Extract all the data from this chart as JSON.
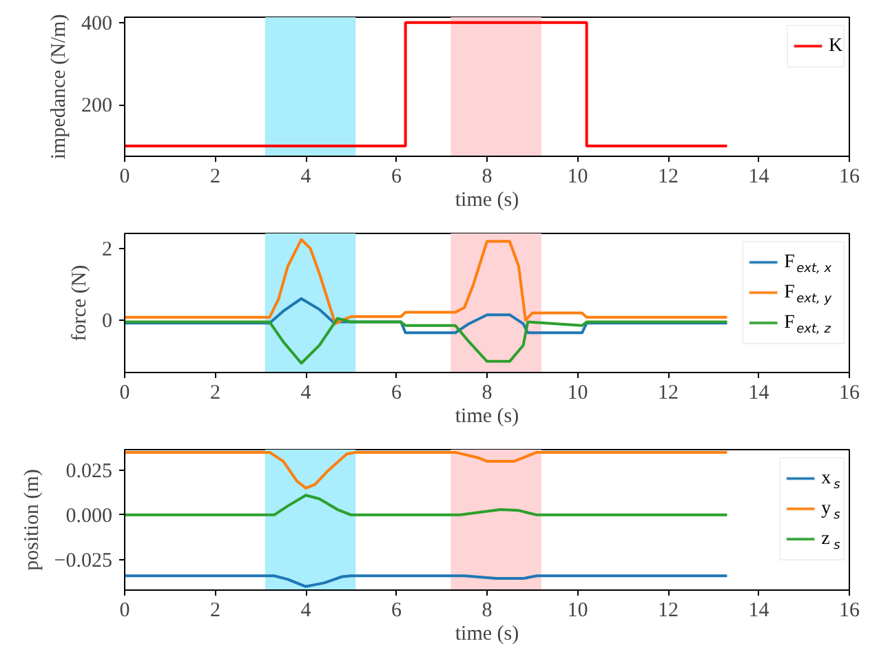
{
  "chart_data": [
    {
      "type": "step",
      "xlabel": "time (s)",
      "ylabel": "impedance (N/m)",
      "xlim": [
        0,
        16
      ],
      "xticks": [
        0,
        2,
        4,
        6,
        8,
        10,
        12,
        14,
        16
      ],
      "ylim": [
        75,
        413
      ],
      "yticks": [
        200,
        400
      ],
      "legend": "top right",
      "bands": [
        {
          "axis": "x",
          "from": 3.1,
          "to": 5.1,
          "color": "#aaedfc"
        },
        {
          "axis": "x",
          "from": 7.2,
          "to": 9.2,
          "color": "#ffd4d6"
        }
      ],
      "series": [
        {
          "name": "K",
          "color": "#ff0000",
          "x": [
            0,
            6.2,
            10.2,
            13.3
          ],
          "values": [
            100,
            400,
            100,
            100
          ]
        }
      ]
    },
    {
      "type": "line",
      "xlabel": "time (s)",
      "ylabel": "force (N)",
      "xlim": [
        0,
        16
      ],
      "xticks": [
        0,
        2,
        4,
        6,
        8,
        10,
        12,
        14,
        16
      ],
      "ylim": [
        -1.46,
        2.42
      ],
      "yticks": [
        0,
        2
      ],
      "legend": "top right",
      "bands": [
        {
          "axis": "x",
          "from": 3.1,
          "to": 5.1,
          "color": "#aaedfc"
        },
        {
          "axis": "x",
          "from": 7.2,
          "to": 9.2,
          "color": "#ffd4d6"
        }
      ],
      "series": [
        {
          "name": "F$_{ext, x}$",
          "color": "#1f77b4",
          "x": [
            0,
            3.2,
            3.5,
            3.9,
            4.3,
            4.6,
            5.0,
            6.1,
            6.2,
            7.3,
            7.6,
            8.0,
            8.5,
            8.8,
            8.9,
            10.1,
            10.2,
            13.3
          ],
          "values": [
            -0.08,
            -0.08,
            0.25,
            0.6,
            0.3,
            -0.05,
            -0.05,
            -0.05,
            -0.35,
            -0.35,
            -0.1,
            0.15,
            0.15,
            -0.1,
            -0.35,
            -0.35,
            -0.08,
            -0.08
          ]
        },
        {
          "name": "F$_{ext, y}$",
          "color": "#ff7f0e",
          "x": [
            0,
            3.2,
            3.4,
            3.6,
            3.9,
            4.1,
            4.3,
            4.5,
            4.65,
            4.8,
            5.0,
            6.1,
            6.2,
            7.3,
            7.5,
            7.7,
            8.0,
            8.5,
            8.7,
            8.85,
            9.0,
            10.1,
            10.2,
            13.3
          ],
          "values": [
            0.08,
            0.08,
            0.6,
            1.5,
            2.25,
            2.0,
            1.3,
            0.5,
            -0.1,
            0.0,
            0.1,
            0.1,
            0.22,
            0.22,
            0.35,
            1.0,
            2.2,
            2.2,
            1.5,
            0.0,
            0.2,
            0.2,
            0.08,
            0.08
          ]
        },
        {
          "name": "F$_{ext, z}$",
          "color": "#2ca02c",
          "x": [
            0,
            3.2,
            3.5,
            3.9,
            4.3,
            4.7,
            5.0,
            6.1,
            6.2,
            7.3,
            7.6,
            8.0,
            8.5,
            8.8,
            8.9,
            10.1,
            10.2,
            13.3
          ],
          "values": [
            -0.05,
            -0.05,
            -0.6,
            -1.2,
            -0.7,
            0.05,
            -0.05,
            -0.05,
            -0.15,
            -0.15,
            -0.6,
            -1.15,
            -1.15,
            -0.7,
            -0.05,
            -0.15,
            -0.05,
            -0.05
          ]
        }
      ]
    },
    {
      "type": "line",
      "xlabel": "time (s)",
      "ylabel": "position (m)",
      "xlim": [
        0,
        16
      ],
      "xticks": [
        0,
        2,
        4,
        6,
        8,
        10,
        12,
        14,
        16
      ],
      "ylim": [
        -0.042,
        0.0365
      ],
      "yticks": [
        {
          "value": -0.025,
          "label": "−0.025"
        },
        {
          "value": 0,
          "label": "0.000"
        },
        0.025
      ],
      "legend": "top right",
      "bands": [
        {
          "axis": "x",
          "from": 3.1,
          "to": 5.1,
          "color": "#aaedfc"
        },
        {
          "axis": "x",
          "from": 7.2,
          "to": 9.2,
          "color": "#ffd4d6"
        }
      ],
      "series": [
        {
          "name": "x$_{s}$",
          "color": "#1f77b4",
          "x": [
            0,
            3.3,
            3.6,
            4.0,
            4.4,
            4.8,
            5.0,
            7.5,
            8.2,
            8.8,
            9.1,
            13.3
          ],
          "values": [
            -0.034,
            -0.034,
            -0.036,
            -0.04,
            -0.038,
            -0.0345,
            -0.034,
            -0.034,
            -0.0355,
            -0.0355,
            -0.034,
            -0.034
          ]
        },
        {
          "name": "y$_{s}$",
          "color": "#ff7f0e",
          "x": [
            0,
            3.2,
            3.5,
            3.8,
            4.0,
            4.2,
            4.5,
            4.9,
            5.1,
            7.3,
            7.8,
            8.0,
            8.6,
            8.9,
            9.1,
            13.3
          ],
          "values": [
            0.035,
            0.035,
            0.03,
            0.019,
            0.015,
            0.017,
            0.025,
            0.034,
            0.035,
            0.035,
            0.032,
            0.03,
            0.03,
            0.033,
            0.035,
            0.035
          ]
        },
        {
          "name": "z$_{s}$",
          "color": "#2ca02c",
          "x": [
            0,
            3.3,
            3.6,
            4.0,
            4.3,
            4.7,
            5.0,
            7.4,
            8.3,
            8.7,
            9.1,
            13.3
          ],
          "values": [
            0,
            0,
            0.005,
            0.011,
            0.009,
            0.003,
            0,
            0,
            0.003,
            0.0025,
            0,
            0
          ]
        }
      ]
    }
  ]
}
